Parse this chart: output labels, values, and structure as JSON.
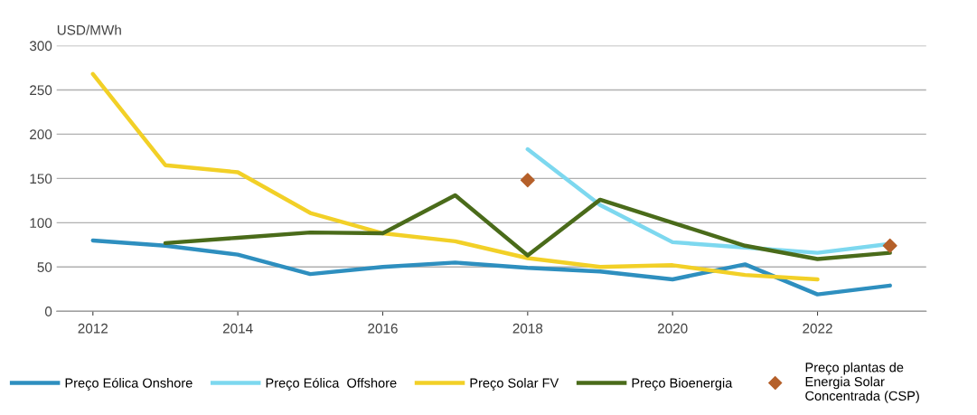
{
  "chart_data": {
    "type": "line",
    "ylabel": "USD/MWh",
    "x": [
      2012,
      2013,
      2014,
      2015,
      2016,
      2017,
      2018,
      2019,
      2020,
      2021,
      2022,
      2023
    ],
    "series": [
      {
        "name": "Preço Eólica Onshore",
        "color": "#2e8fbf",
        "values": [
          80,
          74,
          64,
          42,
          50,
          55,
          49,
          45,
          36,
          53,
          19,
          29
        ]
      },
      {
        "name": "Preço Eólica  Offshore",
        "color": "#7dd8ef",
        "values": [
          null,
          null,
          null,
          null,
          null,
          null,
          183,
          120,
          78,
          72,
          66,
          76
        ]
      },
      {
        "name": "Preço Solar FV",
        "color": "#f2d027",
        "values": [
          268,
          165,
          157,
          111,
          88,
          79,
          60,
          50,
          52,
          41,
          36,
          null
        ]
      },
      {
        "name": "Preço Bioenergia",
        "color": "#4a6b1a",
        "values": [
          null,
          77,
          83,
          89,
          88,
          131,
          63,
          126,
          100,
          74,
          59,
          66
        ]
      },
      {
        "name": "Preço plantas de\nEnergia Solar\nConcentrada (CSP)",
        "color": "#b5602a",
        "type": "scatter",
        "marker": "diamond",
        "values": [
          null,
          null,
          null,
          null,
          null,
          null,
          148,
          null,
          null,
          null,
          null,
          74
        ]
      }
    ],
    "xlim": [
      2011.5,
      2023.5
    ],
    "xticks": [
      2012,
      2014,
      2016,
      2018,
      2020,
      2022
    ],
    "ylim": [
      0,
      300
    ],
    "yticks": [
      0,
      50,
      100,
      150,
      200,
      250,
      300
    ],
    "grid": "y",
    "legend": "bottom"
  }
}
